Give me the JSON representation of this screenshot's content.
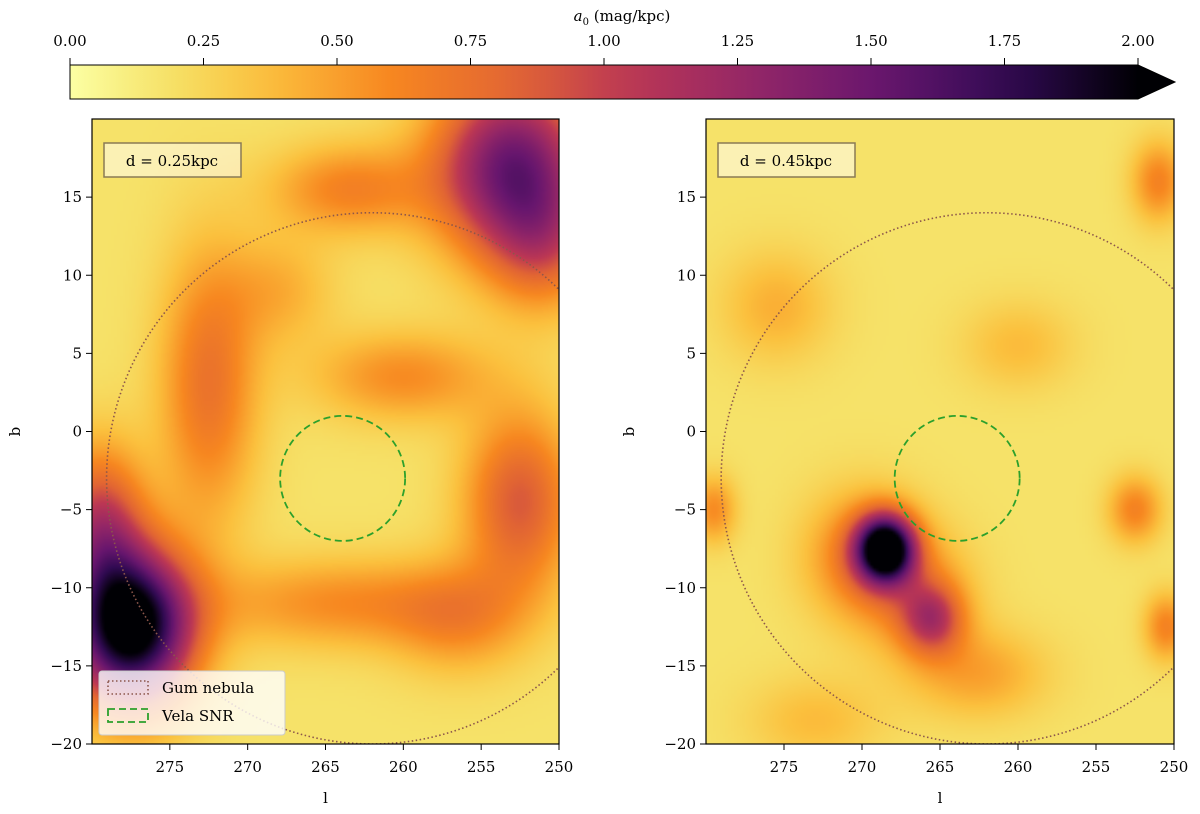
{
  "chart_data": {
    "type": "heatmap",
    "colorbar": {
      "label_html": "a₀ (mag/kpc)",
      "ticks": [
        0.0,
        0.25,
        0.5,
        0.75,
        1.0,
        1.25,
        1.5,
        1.75,
        2.0
      ],
      "tick_labels": [
        "0.00",
        "0.25",
        "0.50",
        "0.75",
        "1.00",
        "1.25",
        "1.50",
        "1.75",
        "2.00"
      ],
      "range": [
        0,
        2
      ],
      "extend": "max",
      "colormap": "inferno_r"
    },
    "panels": [
      {
        "id": "left",
        "annotation": "d = 0.25kpc",
        "xlabel": "l",
        "ylabel": "b",
        "xlim": [
          280,
          250
        ],
        "ylim": [
          -20,
          20
        ],
        "xticks": [
          275,
          270,
          265,
          260,
          255,
          250
        ],
        "xtick_labels": [
          "275",
          "270",
          "265",
          "260",
          "255",
          "250"
        ],
        "yticks": [
          15,
          10,
          5,
          0,
          -5,
          -10,
          -15,
          -20
        ],
        "ytick_labels": [
          "15",
          "10",
          "5",
          "0",
          "−5",
          "−10",
          "−15",
          "−20"
        ],
        "blobs": [
          {
            "l": 277.5,
            "b": -12.5,
            "sl": 2.8,
            "sb": 3.5,
            "amp": 2.0
          },
          {
            "l": 279.5,
            "b": -6.0,
            "sl": 2.0,
            "sb": 3.5,
            "amp": 0.8
          },
          {
            "l": 253.0,
            "b": 17.0,
            "sl": 3.5,
            "sb": 4.0,
            "amp": 1.3
          },
          {
            "l": 251.0,
            "b": 12.0,
            "sl": 2.5,
            "sb": 3.0,
            "amp": 0.5
          },
          {
            "l": 263.5,
            "b": 15.5,
            "sl": 3.5,
            "sb": 2.0,
            "amp": 0.45
          },
          {
            "l": 252.5,
            "b": -4.5,
            "sl": 2.5,
            "sb": 4.0,
            "amp": 0.7
          },
          {
            "l": 272.5,
            "b": 3.0,
            "sl": 2.2,
            "sb": 6.0,
            "amp": 0.55
          },
          {
            "l": 260.0,
            "b": 3.5,
            "sl": 4.0,
            "sb": 2.0,
            "amp": 0.4
          },
          {
            "l": 264.0,
            "b": -11.0,
            "sl": 6.0,
            "sb": 2.0,
            "amp": 0.4
          },
          {
            "l": 256.5,
            "b": -12.0,
            "sl": 3.0,
            "sb": 2.5,
            "amp": 0.35
          },
          {
            "l": 268.0,
            "b": 9.0,
            "sl": 2.5,
            "sb": 2.5,
            "amp": 0.25
          }
        ],
        "base": 0.18,
        "legend": [
          "Gum nebula",
          "Vela SNR"
        ]
      },
      {
        "id": "right",
        "annotation": "d = 0.45kpc",
        "xlabel": "l",
        "ylabel": "b",
        "xlim": [
          280,
          250
        ],
        "ylim": [
          -20,
          20
        ],
        "xticks": [
          275,
          270,
          265,
          260,
          255,
          250
        ],
        "xtick_labels": [
          "275",
          "270",
          "265",
          "260",
          "255",
          "250"
        ],
        "yticks": [
          15,
          10,
          5,
          0,
          -5,
          -10,
          -15,
          -20
        ],
        "ytick_labels": [
          "15",
          "10",
          "5",
          "0",
          "−5",
          "−10",
          "−15",
          "−20"
        ],
        "blobs": [
          {
            "l": 268.5,
            "b": -7.5,
            "sl": 1.3,
            "sb": 1.5,
            "amp": 1.9
          },
          {
            "l": 270.0,
            "b": -8.0,
            "sl": 2.5,
            "sb": 2.8,
            "amp": 0.5
          },
          {
            "l": 265.5,
            "b": -12.0,
            "sl": 1.4,
            "sb": 1.6,
            "amp": 0.7
          },
          {
            "l": 266.5,
            "b": -10.5,
            "sl": 2.5,
            "sb": 2.8,
            "amp": 0.35
          },
          {
            "l": 279.5,
            "b": -5.0,
            "sl": 1.0,
            "sb": 1.5,
            "amp": 0.4
          },
          {
            "l": 252.5,
            "b": -5.0,
            "sl": 1.2,
            "sb": 1.5,
            "amp": 0.45
          },
          {
            "l": 250.5,
            "b": -12.5,
            "sl": 1.0,
            "sb": 1.5,
            "amp": 0.45
          },
          {
            "l": 251.0,
            "b": 16.0,
            "sl": 1.2,
            "sb": 1.8,
            "amp": 0.45
          },
          {
            "l": 275.5,
            "b": 8.0,
            "sl": 2.5,
            "sb": 2.5,
            "amp": 0.25
          },
          {
            "l": 262.5,
            "b": -15.5,
            "sl": 3.0,
            "sb": 2.0,
            "amp": 0.3
          },
          {
            "l": 260.0,
            "b": 5.5,
            "sl": 2.5,
            "sb": 2.0,
            "amp": 0.2
          },
          {
            "l": 273.0,
            "b": -18.5,
            "sl": 3.0,
            "sb": 2.0,
            "amp": 0.2
          }
        ],
        "base": 0.18,
        "legend": []
      }
    ],
    "overlays": {
      "gum_nebula": {
        "label": "Gum nebula",
        "center_l": 262.0,
        "center_b": -3.0,
        "radius_deg": 17.0,
        "color": "#8c564b",
        "style": "dotted"
      },
      "vela_snr": {
        "label": "Vela SNR",
        "center_l": 263.9,
        "center_b": -3.0,
        "radius_deg": 4.0,
        "color": "#2ca02c",
        "style": "dashed"
      }
    }
  }
}
